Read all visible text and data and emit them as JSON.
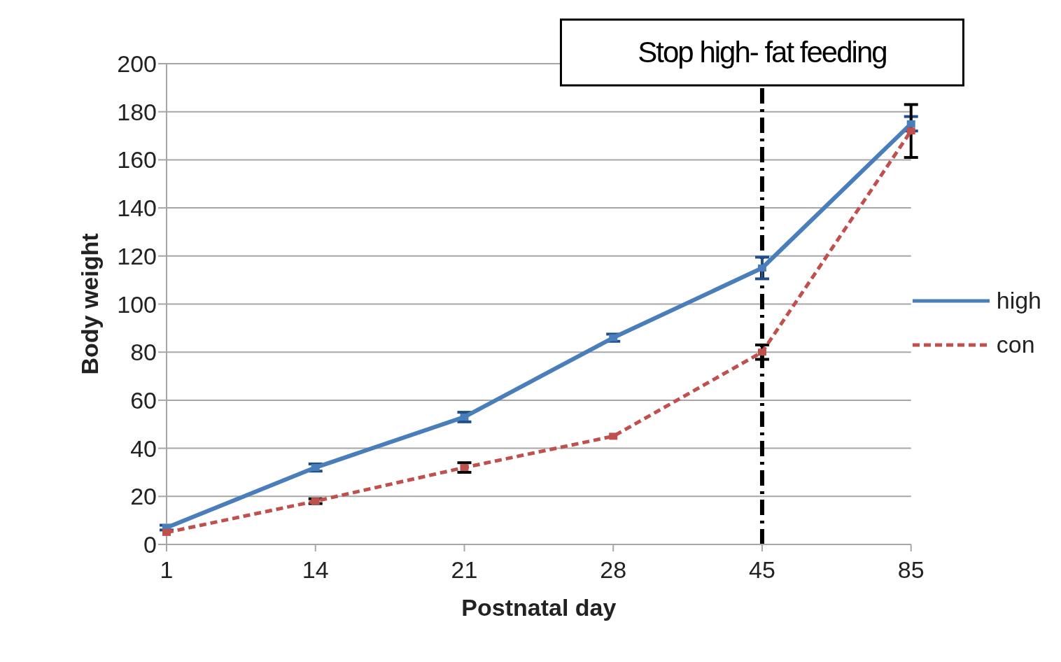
{
  "chart_data": {
    "type": "line",
    "xlabel": "Postnatal day",
    "ylabel": "Body weight",
    "categories": [
      "1",
      "14",
      "21",
      "28",
      "45",
      "85"
    ],
    "series": [
      {
        "name": "high",
        "color": "#4a7ebb",
        "line_style": "solid",
        "values": [
          7,
          32,
          53,
          86,
          115,
          175
        ],
        "errors": [
          1,
          1.5,
          2,
          1.5,
          4.5,
          3
        ]
      },
      {
        "name": "con",
        "color": "#c0504d",
        "line_style": "dashed",
        "values": [
          5,
          18,
          32,
          45,
          80,
          172
        ],
        "errors": [
          null,
          1,
          2,
          null,
          3,
          11
        ]
      }
    ],
    "ylim": [
      0,
      200
    ],
    "yticks": [
      0,
      20,
      40,
      60,
      80,
      100,
      120,
      140,
      160,
      180,
      200
    ],
    "grid": "y",
    "legend": "right",
    "marker": "square",
    "ref_lines": [
      {
        "axis": "x",
        "value": "45",
        "label": "Stop high- fat feeding",
        "color": "#000000",
        "line_style": "dashdot"
      }
    ]
  }
}
